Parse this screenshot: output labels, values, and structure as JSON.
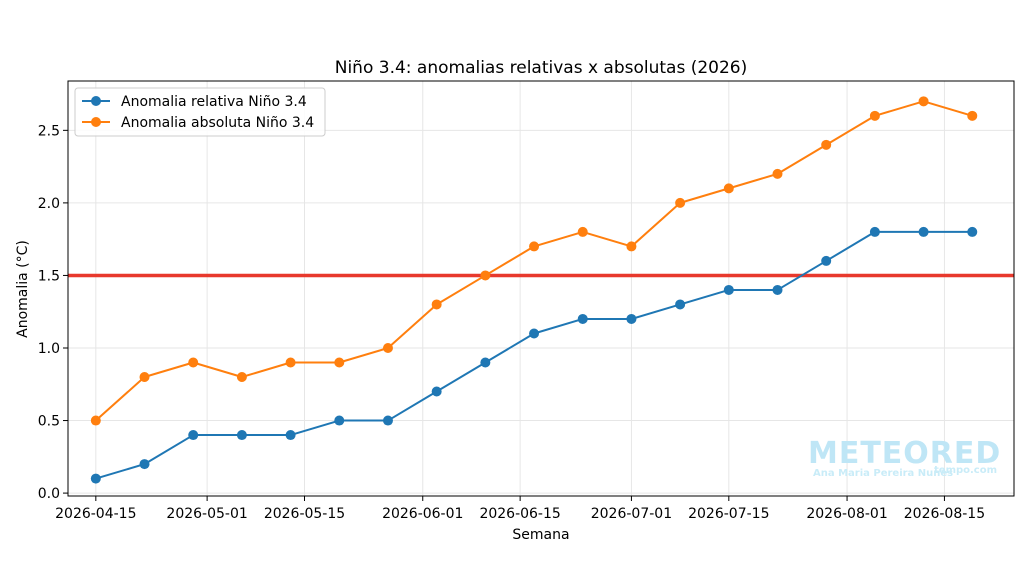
{
  "chart_data": {
    "type": "line",
    "title": "Niño 3.4: anomalias relativas x absolutas (2026)",
    "xlabel": "Semana",
    "ylabel": "Anomalia (°C)",
    "x": [
      "2026-04-15",
      "2026-04-22",
      "2026-04-29",
      "2026-05-06",
      "2026-05-13",
      "2026-05-20",
      "2026-05-27",
      "2026-06-03",
      "2026-06-10",
      "2026-06-17",
      "2026-06-24",
      "2026-07-01",
      "2026-07-08",
      "2026-07-15",
      "2026-07-22",
      "2026-07-29",
      "2026-08-05",
      "2026-08-12",
      "2026-08-19"
    ],
    "xlim": [
      "2026-04-11",
      "2026-08-25"
    ],
    "ylim": [
      -0.02,
      2.84
    ],
    "x_ticks": [
      "2026-04-15",
      "2026-05-01",
      "2026-05-15",
      "2026-06-01",
      "2026-06-15",
      "2026-07-01",
      "2026-07-15",
      "2026-08-01",
      "2026-08-15"
    ],
    "y_ticks": [
      0.0,
      0.5,
      1.0,
      1.5,
      2.0,
      2.5
    ],
    "y_tick_labels": [
      "0.0",
      "0.5",
      "1.0",
      "1.5",
      "2.0",
      "2.5"
    ],
    "series": [
      {
        "name": "Anomalia relativa Niño 3.4",
        "color": "#1f77b4",
        "values": [
          0.1,
          0.2,
          0.4,
          0.4,
          0.4,
          0.5,
          0.5,
          0.7,
          0.9,
          1.1,
          1.2,
          1.2,
          1.3,
          1.4,
          1.4,
          1.6,
          1.8,
          1.8,
          1.8
        ]
      },
      {
        "name": "Anomalia absoluta Niño 3.4",
        "color": "#ff7f0e",
        "values": [
          0.5,
          0.8,
          0.9,
          0.8,
          0.9,
          0.9,
          1.0,
          1.3,
          1.5,
          1.7,
          1.8,
          1.7,
          2.0,
          2.1,
          2.2,
          2.4,
          2.6,
          2.7,
          2.6
        ]
      }
    ],
    "hlines": [
      {
        "y": 1.5,
        "color": "#e8392d"
      }
    ],
    "grid": true,
    "legend": "top-left"
  },
  "watermark": {
    "logo": "METEORED",
    "author": "Ana Maria Pereira Nunes",
    "site": "tempo.com"
  }
}
